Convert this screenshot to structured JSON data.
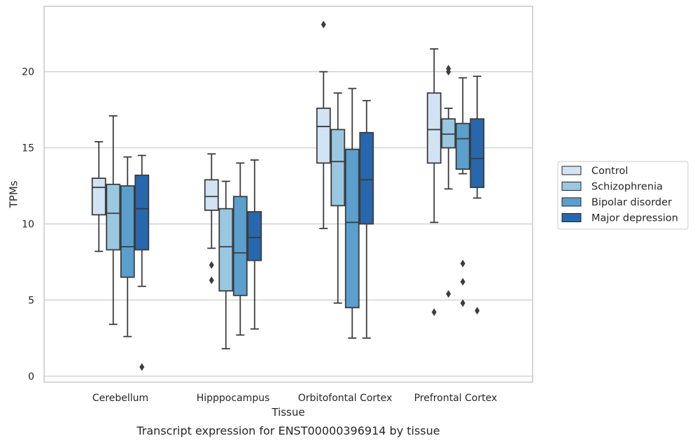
{
  "chart_data": {
    "type": "box",
    "title": "",
    "caption": "Transcript expression for ENST00000396914 by tissue",
    "xlabel": "Tissue",
    "ylabel": "TPMs",
    "ylim": [
      -0.4,
      24.3
    ],
    "yticks": [
      0,
      5,
      10,
      15,
      20
    ],
    "grid": "horizontal",
    "legend": "outside-right",
    "categories": [
      "Cerebellum",
      "Hipppocampus",
      "Orbitofontal Cortex",
      "Prefrontal Cortex"
    ],
    "series": [
      {
        "name": "Control",
        "color": "#d2e3f3",
        "boxes": [
          {
            "whislo": 8.2,
            "q1": 10.6,
            "med": 12.4,
            "q3": 13.0,
            "whishi": 15.4,
            "fliers": []
          },
          {
            "whislo": 8.4,
            "q1": 10.9,
            "med": 11.8,
            "q3": 12.9,
            "whishi": 14.6,
            "fliers": [
              6.3,
              7.3
            ]
          },
          {
            "whislo": 9.7,
            "q1": 14.0,
            "med": 16.4,
            "q3": 17.6,
            "whishi": 20.0,
            "fliers": [
              23.1
            ]
          },
          {
            "whislo": 10.1,
            "q1": 14.0,
            "med": 16.2,
            "q3": 18.6,
            "whishi": 21.5,
            "fliers": [
              4.2
            ]
          }
        ]
      },
      {
        "name": "Schizophrenia",
        "color": "#9ac8e0",
        "boxes": [
          {
            "whislo": 3.4,
            "q1": 8.3,
            "med": 10.7,
            "q3": 12.6,
            "whishi": 17.1,
            "fliers": []
          },
          {
            "whislo": 1.8,
            "q1": 5.6,
            "med": 8.5,
            "q3": 11.0,
            "whishi": 12.8,
            "fliers": []
          },
          {
            "whislo": 4.8,
            "q1": 11.2,
            "med": 14.1,
            "q3": 16.2,
            "whishi": 18.6,
            "fliers": []
          },
          {
            "whislo": 12.3,
            "q1": 15.0,
            "med": 15.9,
            "q3": 16.9,
            "whishi": 17.6,
            "fliers": [
              5.4,
              20.0,
              20.2
            ]
          }
        ]
      },
      {
        "name": "Bipolar disorder",
        "color": "#5a9fcd",
        "boxes": [
          {
            "whislo": 2.6,
            "q1": 6.5,
            "med": 8.5,
            "q3": 12.5,
            "whishi": 14.4,
            "fliers": []
          },
          {
            "whislo": 2.7,
            "q1": 5.3,
            "med": 8.1,
            "q3": 11.8,
            "whishi": 14.0,
            "fliers": []
          },
          {
            "whislo": 2.5,
            "q1": 4.5,
            "med": 10.1,
            "q3": 14.9,
            "whishi": 18.9,
            "fliers": []
          },
          {
            "whislo": 13.3,
            "q1": 13.6,
            "med": 15.6,
            "q3": 16.6,
            "whishi": 19.6,
            "fliers": [
              4.8,
              6.2,
              7.4
            ]
          }
        ]
      },
      {
        "name": "Major depression",
        "color": "#2767ae",
        "boxes": [
          {
            "whislo": 5.9,
            "q1": 8.3,
            "med": 11.0,
            "q3": 13.2,
            "whishi": 14.5,
            "fliers": [
              0.6
            ]
          },
          {
            "whislo": 3.1,
            "q1": 7.6,
            "med": 9.1,
            "q3": 10.8,
            "whishi": 14.2,
            "fliers": []
          },
          {
            "whislo": 2.5,
            "q1": 10.0,
            "med": 12.9,
            "q3": 16.0,
            "whishi": 18.1,
            "fliers": []
          },
          {
            "whislo": 11.7,
            "q1": 12.4,
            "med": 14.3,
            "q3": 16.9,
            "whishi": 19.7,
            "fliers": [
              4.3
            ]
          }
        ]
      }
    ]
  }
}
